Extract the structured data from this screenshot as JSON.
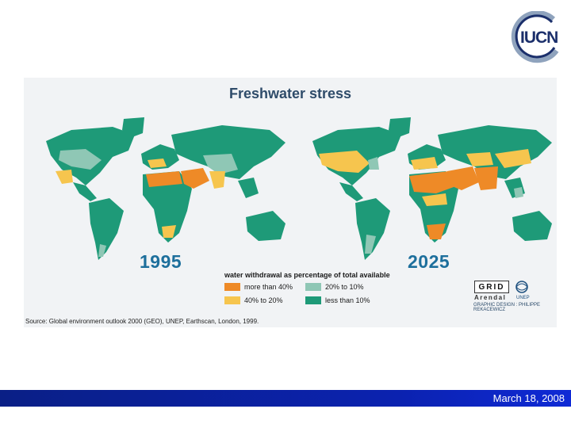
{
  "logo": {
    "text": "IUCN"
  },
  "figure": {
    "title": "Freshwater stress",
    "maps": [
      {
        "year": "1995"
      },
      {
        "year": "2025"
      }
    ],
    "legend": {
      "title": "water withdrawal as percentage of total available",
      "items": [
        {
          "label": "more than 40%",
          "color": "#ee8a27"
        },
        {
          "label": "20% to 10%",
          "color": "#8fc7b5"
        },
        {
          "label": "40% to 20%",
          "color": "#f6c54e"
        },
        {
          "label": "less than 10%",
          "color": "#1e9a78"
        }
      ]
    },
    "credits": {
      "grid": "GRID",
      "arendal": "Arendal",
      "unep": "UNEP",
      "design": "GRAPHIC DESIGN : PHILIPPE REKACEWICZ"
    },
    "source": "Source: Global environment outlook 2000 (GEO), UNEP, Earthscan, London, 1999."
  },
  "footer": {
    "date": "March 18, 2008",
    "bar_color": "#0b22b0"
  }
}
